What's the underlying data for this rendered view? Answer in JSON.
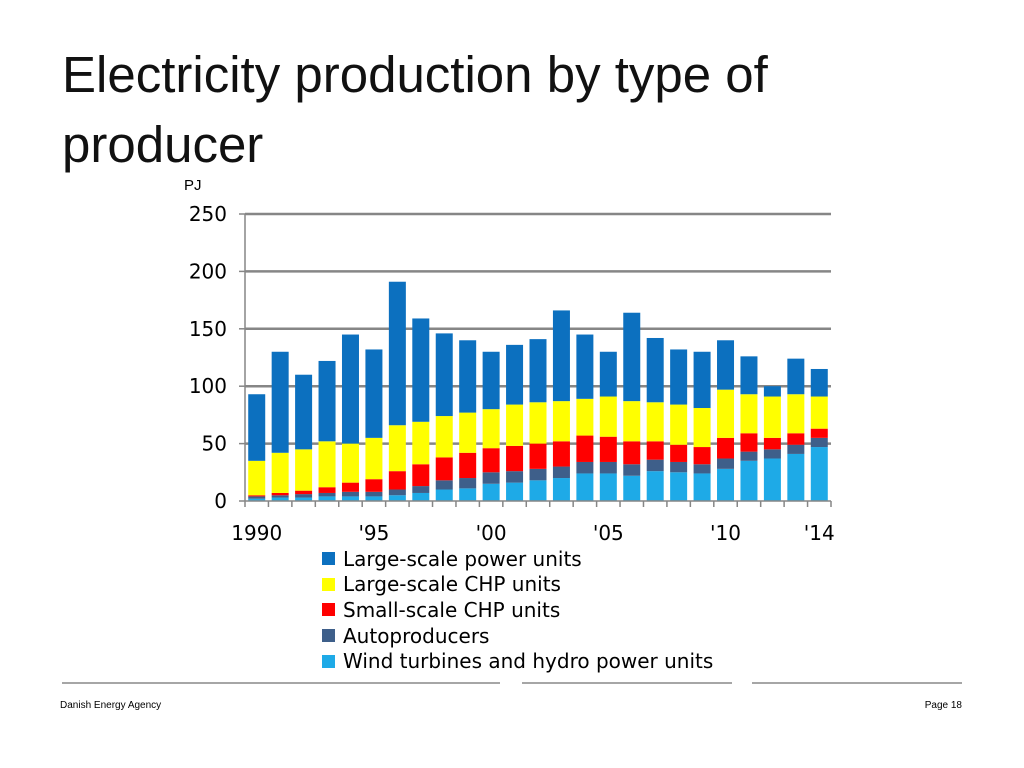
{
  "slide": {
    "title": "Electricity production by type of producer",
    "footer_left": "Danish Energy Agency",
    "footer_right": "Page 18"
  },
  "chart_data": {
    "type": "bar",
    "stacked": true,
    "unit_label": "PJ",
    "ylim": [
      0,
      250
    ],
    "yticks": [
      0,
      50,
      100,
      150,
      200,
      250
    ],
    "grid": true,
    "legend_position": "bottom",
    "categories": [
      1990,
      1991,
      1992,
      1993,
      1994,
      1995,
      1996,
      1997,
      1998,
      1999,
      2000,
      2001,
      2002,
      2003,
      2004,
      2005,
      2006,
      2007,
      2008,
      2009,
      2010,
      2011,
      2012,
      2013,
      2014
    ],
    "x_tick_labels": [
      {
        "year": 1990,
        "label": "1990"
      },
      {
        "year": 1995,
        "label": "'95"
      },
      {
        "year": 2000,
        "label": "'00"
      },
      {
        "year": 2005,
        "label": "'05"
      },
      {
        "year": 2010,
        "label": "'10"
      },
      {
        "year": 2014,
        "label": "'14"
      }
    ],
    "series": [
      {
        "name": "Wind turbines and hydro power units",
        "color": "#1eaae7",
        "values": [
          2,
          3,
          3,
          4,
          4,
          4,
          5,
          7,
          10,
          11,
          15,
          16,
          18,
          20,
          24,
          24,
          22,
          26,
          25,
          24,
          28,
          35,
          37,
          41,
          47
        ]
      },
      {
        "name": "Autoproducers",
        "color": "#3e5f8a",
        "values": [
          2,
          2,
          3,
          3,
          4,
          4,
          5,
          6,
          8,
          9,
          10,
          10,
          10,
          10,
          10,
          10,
          10,
          10,
          9,
          8,
          9,
          8,
          8,
          8,
          8
        ]
      },
      {
        "name": "Small-scale CHP units",
        "color": "#ff0000",
        "values": [
          1,
          2,
          3,
          5,
          8,
          11,
          16,
          19,
          20,
          22,
          21,
          22,
          22,
          22,
          23,
          22,
          20,
          16,
          15,
          15,
          18,
          16,
          10,
          10,
          8
        ]
      },
      {
        "name": "Large-scale CHP units",
        "color": "#ffff00",
        "values": [
          30,
          35,
          36,
          40,
          34,
          36,
          40,
          37,
          36,
          35,
          34,
          36,
          36,
          35,
          32,
          35,
          35,
          34,
          35,
          34,
          42,
          34,
          36,
          34,
          28
        ]
      },
      {
        "name": "Large-scale power units",
        "color": "#0c70bf",
        "values": [
          58,
          88,
          65,
          70,
          95,
          77,
          125,
          90,
          72,
          63,
          50,
          52,
          55,
          79,
          56,
          39,
          77,
          56,
          48,
          49,
          43,
          33,
          9,
          31,
          24
        ]
      }
    ],
    "legend_order": [
      "Large-scale power units",
      "Large-scale CHP units",
      "Small-scale CHP units",
      "Autoproducers",
      "Wind turbines and hydro power units"
    ]
  }
}
